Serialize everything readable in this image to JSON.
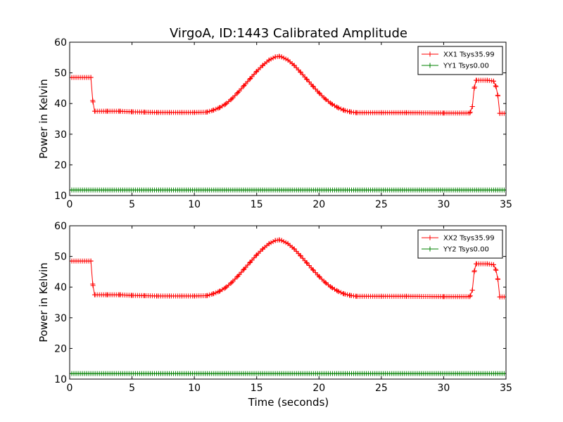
{
  "figure": {
    "title": "VirgoA, ID:1443 Calibrated Amplitude",
    "xlabel": "Time (seconds)"
  },
  "colors": {
    "xx": "#ff0000",
    "yy": "#008000",
    "axes": "#000000",
    "background": "#ffffff"
  },
  "chart_data": [
    {
      "type": "line",
      "title": "VirgoA, ID:1443 Calibrated Amplitude",
      "xlabel": "",
      "ylabel": "Power in Kelvin",
      "xlim": [
        0,
        35
      ],
      "ylim": [
        10,
        60
      ],
      "xticks": [
        0,
        5,
        10,
        15,
        20,
        25,
        30,
        35
      ],
      "yticks": [
        10,
        20,
        30,
        40,
        50,
        60
      ],
      "grid": false,
      "legend_position": "top-right",
      "marker": "+",
      "series": [
        {
          "name": "XX1 Tsys35.99",
          "color": "#ff0000",
          "x": [
            0,
            1.7,
            1.85,
            2.0,
            3,
            4,
            5,
            6,
            7,
            8,
            9,
            10,
            11,
            11.5,
            12,
            12.5,
            13,
            13.5,
            14,
            14.5,
            15,
            15.5,
            16,
            16.5,
            16.8,
            17,
            17.5,
            18,
            18.5,
            19,
            19.5,
            20,
            20.5,
            21,
            21.5,
            22,
            22.5,
            23,
            25,
            27,
            30,
            32.1,
            32.3,
            32.45,
            32.6,
            33.5,
            34.0,
            34.2,
            34.35,
            34.5,
            35
          ],
          "y": [
            48.5,
            48.5,
            41,
            37.5,
            37.5,
            37.5,
            37.3,
            37.2,
            37.1,
            37.1,
            37.1,
            37.1,
            37.2,
            37.8,
            38.6,
            39.8,
            41.5,
            43.6,
            45.9,
            48.2,
            50.5,
            52.5,
            54.2,
            55.2,
            55.4,
            55.2,
            54.2,
            52.5,
            50.3,
            48.0,
            45.7,
            43.5,
            41.5,
            39.9,
            38.7,
            37.8,
            37.3,
            37.0,
            37.0,
            37.0,
            36.9,
            36.9,
            39,
            45,
            47.6,
            47.6,
            47.3,
            45.5,
            42.5,
            36.8,
            36.8
          ]
        },
        {
          "name": "YY1 Tsys0.00",
          "color": "#008000",
          "x": [
            0,
            35
          ],
          "y": [
            11.8,
            11.8
          ]
        }
      ]
    },
    {
      "type": "line",
      "title": "",
      "xlabel": "Time (seconds)",
      "ylabel": "Power in Kelvin",
      "xlim": [
        0,
        35
      ],
      "ylim": [
        10,
        60
      ],
      "xticks": [
        0,
        5,
        10,
        15,
        20,
        25,
        30,
        35
      ],
      "yticks": [
        10,
        20,
        30,
        40,
        50,
        60
      ],
      "grid": false,
      "legend_position": "top-right",
      "marker": "+",
      "series": [
        {
          "name": "XX2 Tsys35.99",
          "color": "#ff0000",
          "x": [
            0,
            1.7,
            1.85,
            2.0,
            3,
            4,
            5,
            6,
            7,
            8,
            9,
            10,
            11,
            11.5,
            12,
            12.5,
            13,
            13.5,
            14,
            14.5,
            15,
            15.5,
            16,
            16.5,
            16.8,
            17,
            17.5,
            18,
            18.5,
            19,
            19.5,
            20,
            20.5,
            21,
            21.5,
            22,
            22.5,
            23,
            25,
            27,
            30,
            32.1,
            32.3,
            32.45,
            32.6,
            33.5,
            34.0,
            34.2,
            34.35,
            34.5,
            35
          ],
          "y": [
            48.5,
            48.5,
            41,
            37.5,
            37.5,
            37.5,
            37.3,
            37.2,
            37.1,
            37.1,
            37.1,
            37.1,
            37.2,
            37.8,
            38.6,
            39.8,
            41.5,
            43.6,
            45.9,
            48.2,
            50.5,
            52.5,
            54.2,
            55.2,
            55.4,
            55.2,
            54.2,
            52.5,
            50.3,
            48.0,
            45.7,
            43.5,
            41.5,
            39.9,
            38.7,
            37.8,
            37.3,
            37.0,
            37.0,
            37.0,
            36.9,
            36.9,
            39,
            45,
            47.6,
            47.6,
            47.3,
            45.5,
            42.5,
            36.8,
            36.8
          ]
        },
        {
          "name": "YY2 Tsys0.00",
          "color": "#008000",
          "x": [
            0,
            35
          ],
          "y": [
            11.8,
            11.8
          ]
        }
      ]
    }
  ]
}
